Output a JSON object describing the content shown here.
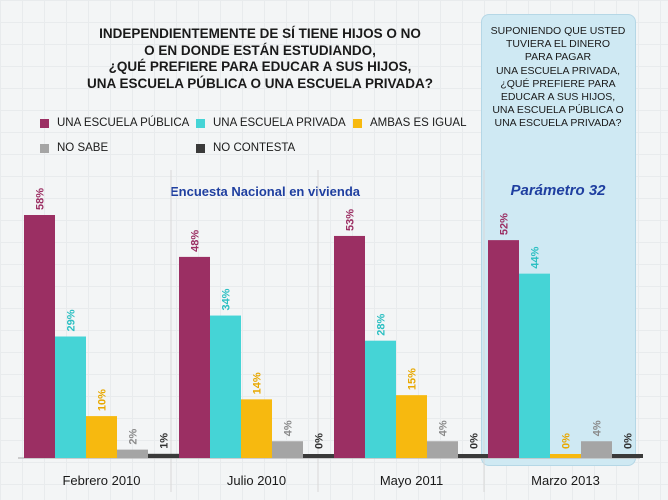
{
  "title": "INDEPENDIENTEMENTE DE SÍ TIENE HIJOS O NO\nO EN DONDE ESTÁN ESTUDIANDO,\n¿QUÉ PREFIERE PARA EDUCAR A SUS HIJOS,\nUNA ESCUELA PÚBLICA O UNA ESCUELA PRIVADA?",
  "side_question": "SUPONIENDO QUE USTED\nTUVIERA EL DINERO\nPARA PAGAR\nUNA ESCUELA PRIVADA,\n¿QUÉ PREFIERE PARA\nEDUCAR A SUS HIJOS,\nUNA ESCUELA PÚBLICA O\nUNA ESCUELA PRIVADA?",
  "survey_label": "Encuesta Nacional en vivienda",
  "param_label": "Parámetro 32",
  "colors": {
    "publica": "#9b2f63",
    "privada": "#45d4d6",
    "ambas": "#f7b90f",
    "no_sabe": "#a5a5a5",
    "no_contesta": "#3a3a3a",
    "panel": "#cfe9f3",
    "accent": "#1f3fa0"
  },
  "legend": [
    {
      "label": "UNA ESCUELA PÚBLICA",
      "color": "#9b2f63"
    },
    {
      "label": "UNA ESCUELA PRIVADA",
      "color": "#45d4d6"
    },
    {
      "label": "AMBAS ES IGUAL",
      "color": "#f7b90f"
    },
    {
      "label": "NO SABE",
      "color": "#a5a5a5"
    },
    {
      "label": "NO CONTESTA",
      "color": "#3a3a3a"
    }
  ],
  "chart_data": {
    "type": "bar",
    "categories": [
      "Febrero 2010",
      "Julio 2010",
      "Mayo 2011",
      "Marzo 2013"
    ],
    "series": [
      {
        "name": "UNA ESCUELA PÚBLICA",
        "values": [
          58,
          48,
          53,
          52
        ],
        "labels": [
          "58%",
          "48%",
          "53%",
          "52%"
        ]
      },
      {
        "name": "UNA ESCUELA PRIVADA",
        "values": [
          29,
          34,
          28,
          44
        ],
        "labels": [
          "29%",
          "34%",
          "28%",
          "44%"
        ]
      },
      {
        "name": "AMBAS ES IGUAL",
        "values": [
          10,
          14,
          15,
          0
        ],
        "labels": [
          "10%",
          "14%",
          "15%",
          "0%"
        ]
      },
      {
        "name": "NO SABE",
        "values": [
          2,
          4,
          4,
          4
        ],
        "labels": [
          "2%",
          "4%",
          "4%",
          "4%"
        ]
      },
      {
        "name": "NO CONTESTA",
        "values": [
          1,
          0,
          0,
          0
        ],
        "labels": [
          "1%",
          "0%",
          "0%",
          "0%"
        ]
      }
    ],
    "ylim": [
      0,
      60
    ],
    "legend_position": "top-left",
    "grid": false
  }
}
